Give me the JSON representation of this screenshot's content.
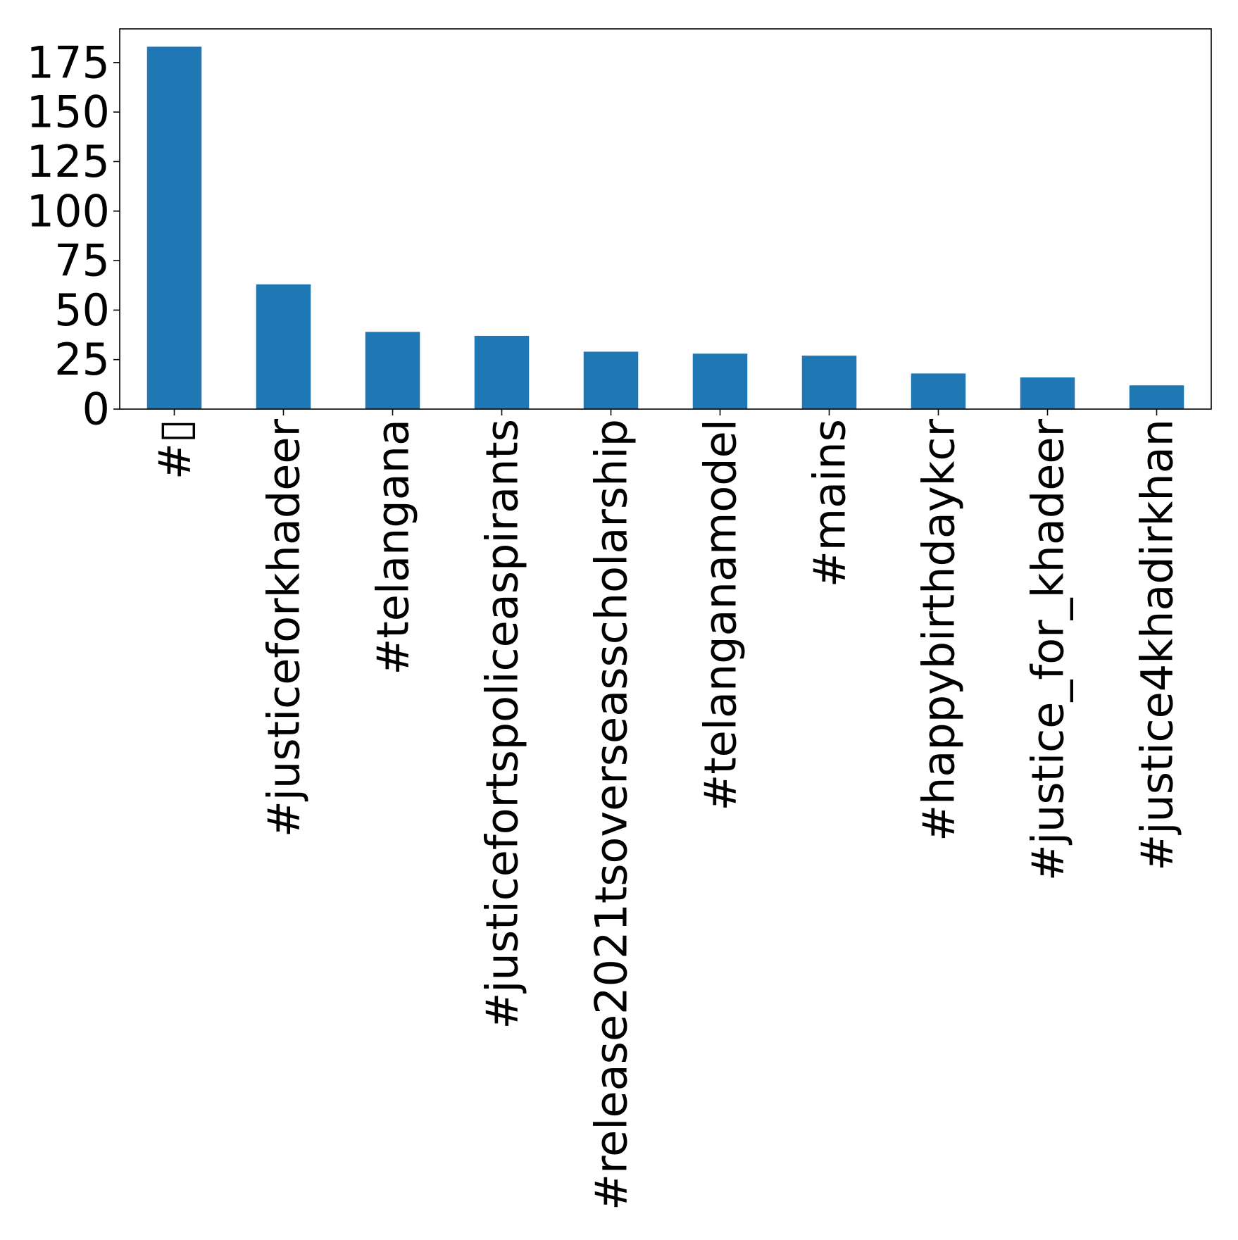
{
  "chart_data": {
    "type": "bar",
    "title": "",
    "xlabel": "",
    "ylabel": "",
    "categories": [
      "#▯",
      "#justiceforkhadeer",
      "#telangana",
      "#justicefortspoliceaspirants",
      "#release2021tsoverseasscholarship",
      "#telanganamodel",
      "#mains",
      "#happybirthdaykcr",
      "#justice_for_khadeer",
      "#justice4khadirkhan"
    ],
    "values": [
      183,
      63,
      39,
      37,
      29,
      28,
      27,
      18,
      16,
      12
    ],
    "ylim": [
      0,
      192
    ],
    "yticks": [
      0,
      25,
      50,
      75,
      100,
      125,
      150,
      175
    ],
    "grid": false,
    "legend": "none",
    "bar_color": "#1f77b4"
  }
}
